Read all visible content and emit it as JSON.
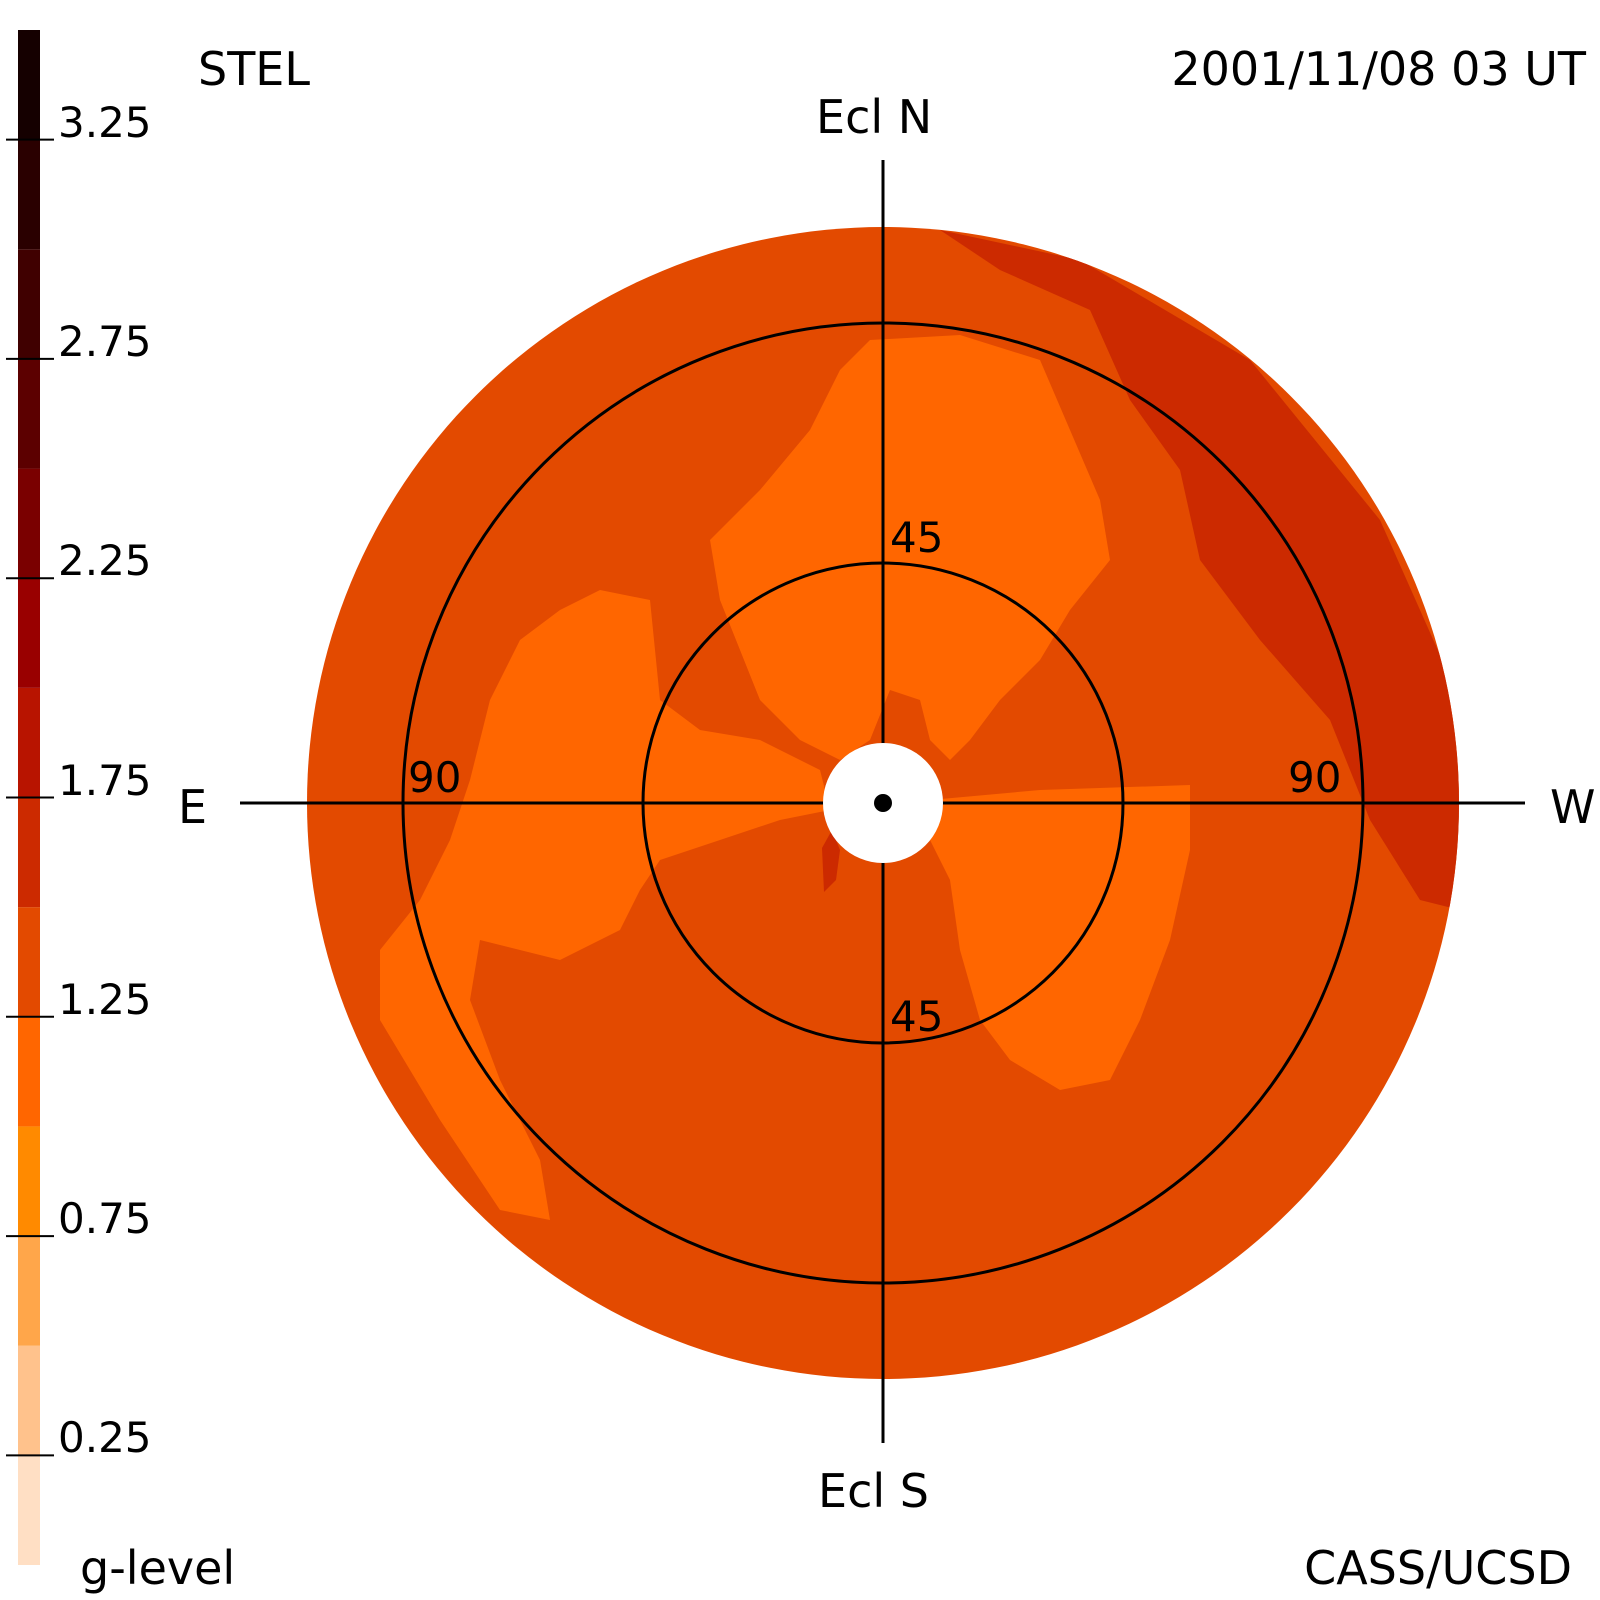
{
  "header": {
    "instrument": "STEL",
    "datetime": "2001/11/08 03 UT",
    "credit": "CASS/UCSD"
  },
  "directions": {
    "north": "Ecl N",
    "south": "Ecl S",
    "east": "E",
    "west": "W"
  },
  "colorbar": {
    "label": "g-level",
    "ticks": [
      "3.25",
      "2.75",
      "2.25",
      "1.75",
      "1.25",
      "0.75",
      "0.25"
    ]
  },
  "chart_data": {
    "type": "heatmap",
    "projection": "fisheye sky map (elongation from Sun)",
    "ring_labels": {
      "inner": "45",
      "outer": "90"
    },
    "rings_elongation_deg": [
      45,
      90
    ],
    "colorbar_range": [
      0,
      3.5
    ],
    "colorbar_levels": [
      {
        "from": 0.0,
        "to": 0.25,
        "color": "#ffdfc4"
      },
      {
        "from": 0.25,
        "to": 0.5,
        "color": "#ffc28c"
      },
      {
        "from": 0.5,
        "to": 0.75,
        "color": "#ffa64a"
      },
      {
        "from": 0.75,
        "to": 1.0,
        "color": "#ff8a00"
      },
      {
        "from": 1.0,
        "to": 1.25,
        "color": "#ff6600"
      },
      {
        "from": 1.25,
        "to": 1.5,
        "color": "#e34a00"
      },
      {
        "from": 1.5,
        "to": 1.75,
        "color": "#cc2a00"
      },
      {
        "from": 1.75,
        "to": 2.0,
        "color": "#b81400"
      },
      {
        "from": 2.0,
        "to": 2.25,
        "color": "#990000"
      },
      {
        "from": 2.25,
        "to": 2.5,
        "color": "#7a0000"
      },
      {
        "from": 2.5,
        "to": 2.75,
        "color": "#5c0000"
      },
      {
        "from": 2.75,
        "to": 3.0,
        "color": "#400000"
      },
      {
        "from": 3.0,
        "to": 3.25,
        "color": "#2a0000"
      },
      {
        "from": 3.25,
        "to": 3.5,
        "color": "#150000"
      }
    ],
    "map_regions": {
      "background_level_color": "#e34a00",
      "enhanced_level_color": "#ff6600",
      "high_level_color": "#cc2a00"
    }
  }
}
